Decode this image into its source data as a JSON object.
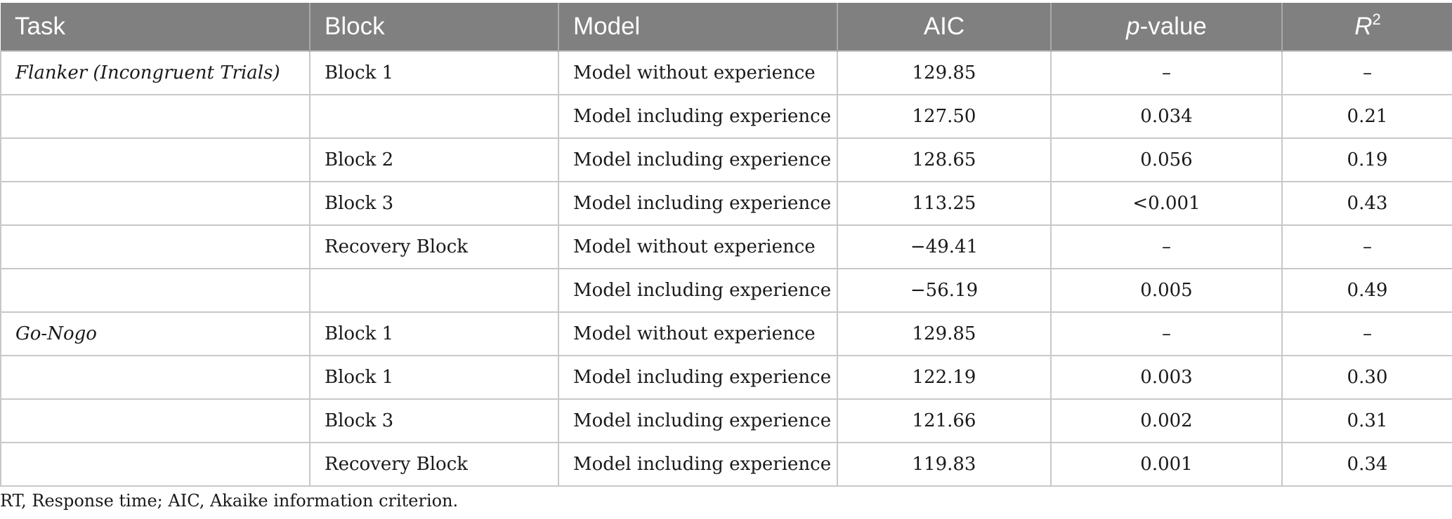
{
  "table": {
    "headers": {
      "task": "Task",
      "block": "Block",
      "model": "Model",
      "aic": "AIC",
      "p_italic": "p",
      "p_rest": "-value",
      "r_italic": "R",
      "r_sup": "2"
    },
    "rows": [
      {
        "task": "Flanker (Incongruent Trials)",
        "block": "Block 1",
        "model": "Model without experience",
        "aic": "129.85",
        "p": "–",
        "r2": "–"
      },
      {
        "task": "",
        "block": "",
        "model": "Model including experience",
        "aic": "127.50",
        "p": "0.034",
        "r2": "0.21"
      },
      {
        "task": "",
        "block": "Block 2",
        "model": "Model including experience",
        "aic": "128.65",
        "p": "0.056",
        "r2": "0.19"
      },
      {
        "task": "",
        "block": "Block 3",
        "model": "Model including experience",
        "aic": "113.25",
        "p": "<0.001",
        "r2": "0.43"
      },
      {
        "task": "",
        "block": "Recovery Block",
        "model": "Model without experience",
        "aic": "−49.41",
        "p": "–",
        "r2": "–"
      },
      {
        "task": "",
        "block": "",
        "model": "Model including experience",
        "aic": "−56.19",
        "p": "0.005",
        "r2": "0.49"
      },
      {
        "task": "Go-Nogo",
        "block": "Block 1",
        "model": "Model without experience",
        "aic": "129.85",
        "p": "–",
        "r2": "–"
      },
      {
        "task": "",
        "block": "Block 1",
        "model": "Model including experience",
        "aic": "122.19",
        "p": "0.003",
        "r2": "0.30"
      },
      {
        "task": "",
        "block": "Block 3",
        "model": "Model including experience",
        "aic": "121.66",
        "p": "0.002",
        "r2": "0.31"
      },
      {
        "task": "",
        "block": "Recovery Block",
        "model": "Model including experience",
        "aic": "119.83",
        "p": "0.001",
        "r2": "0.34"
      }
    ]
  },
  "footnote": "RT, Response time; AIC, Akaike information criterion."
}
